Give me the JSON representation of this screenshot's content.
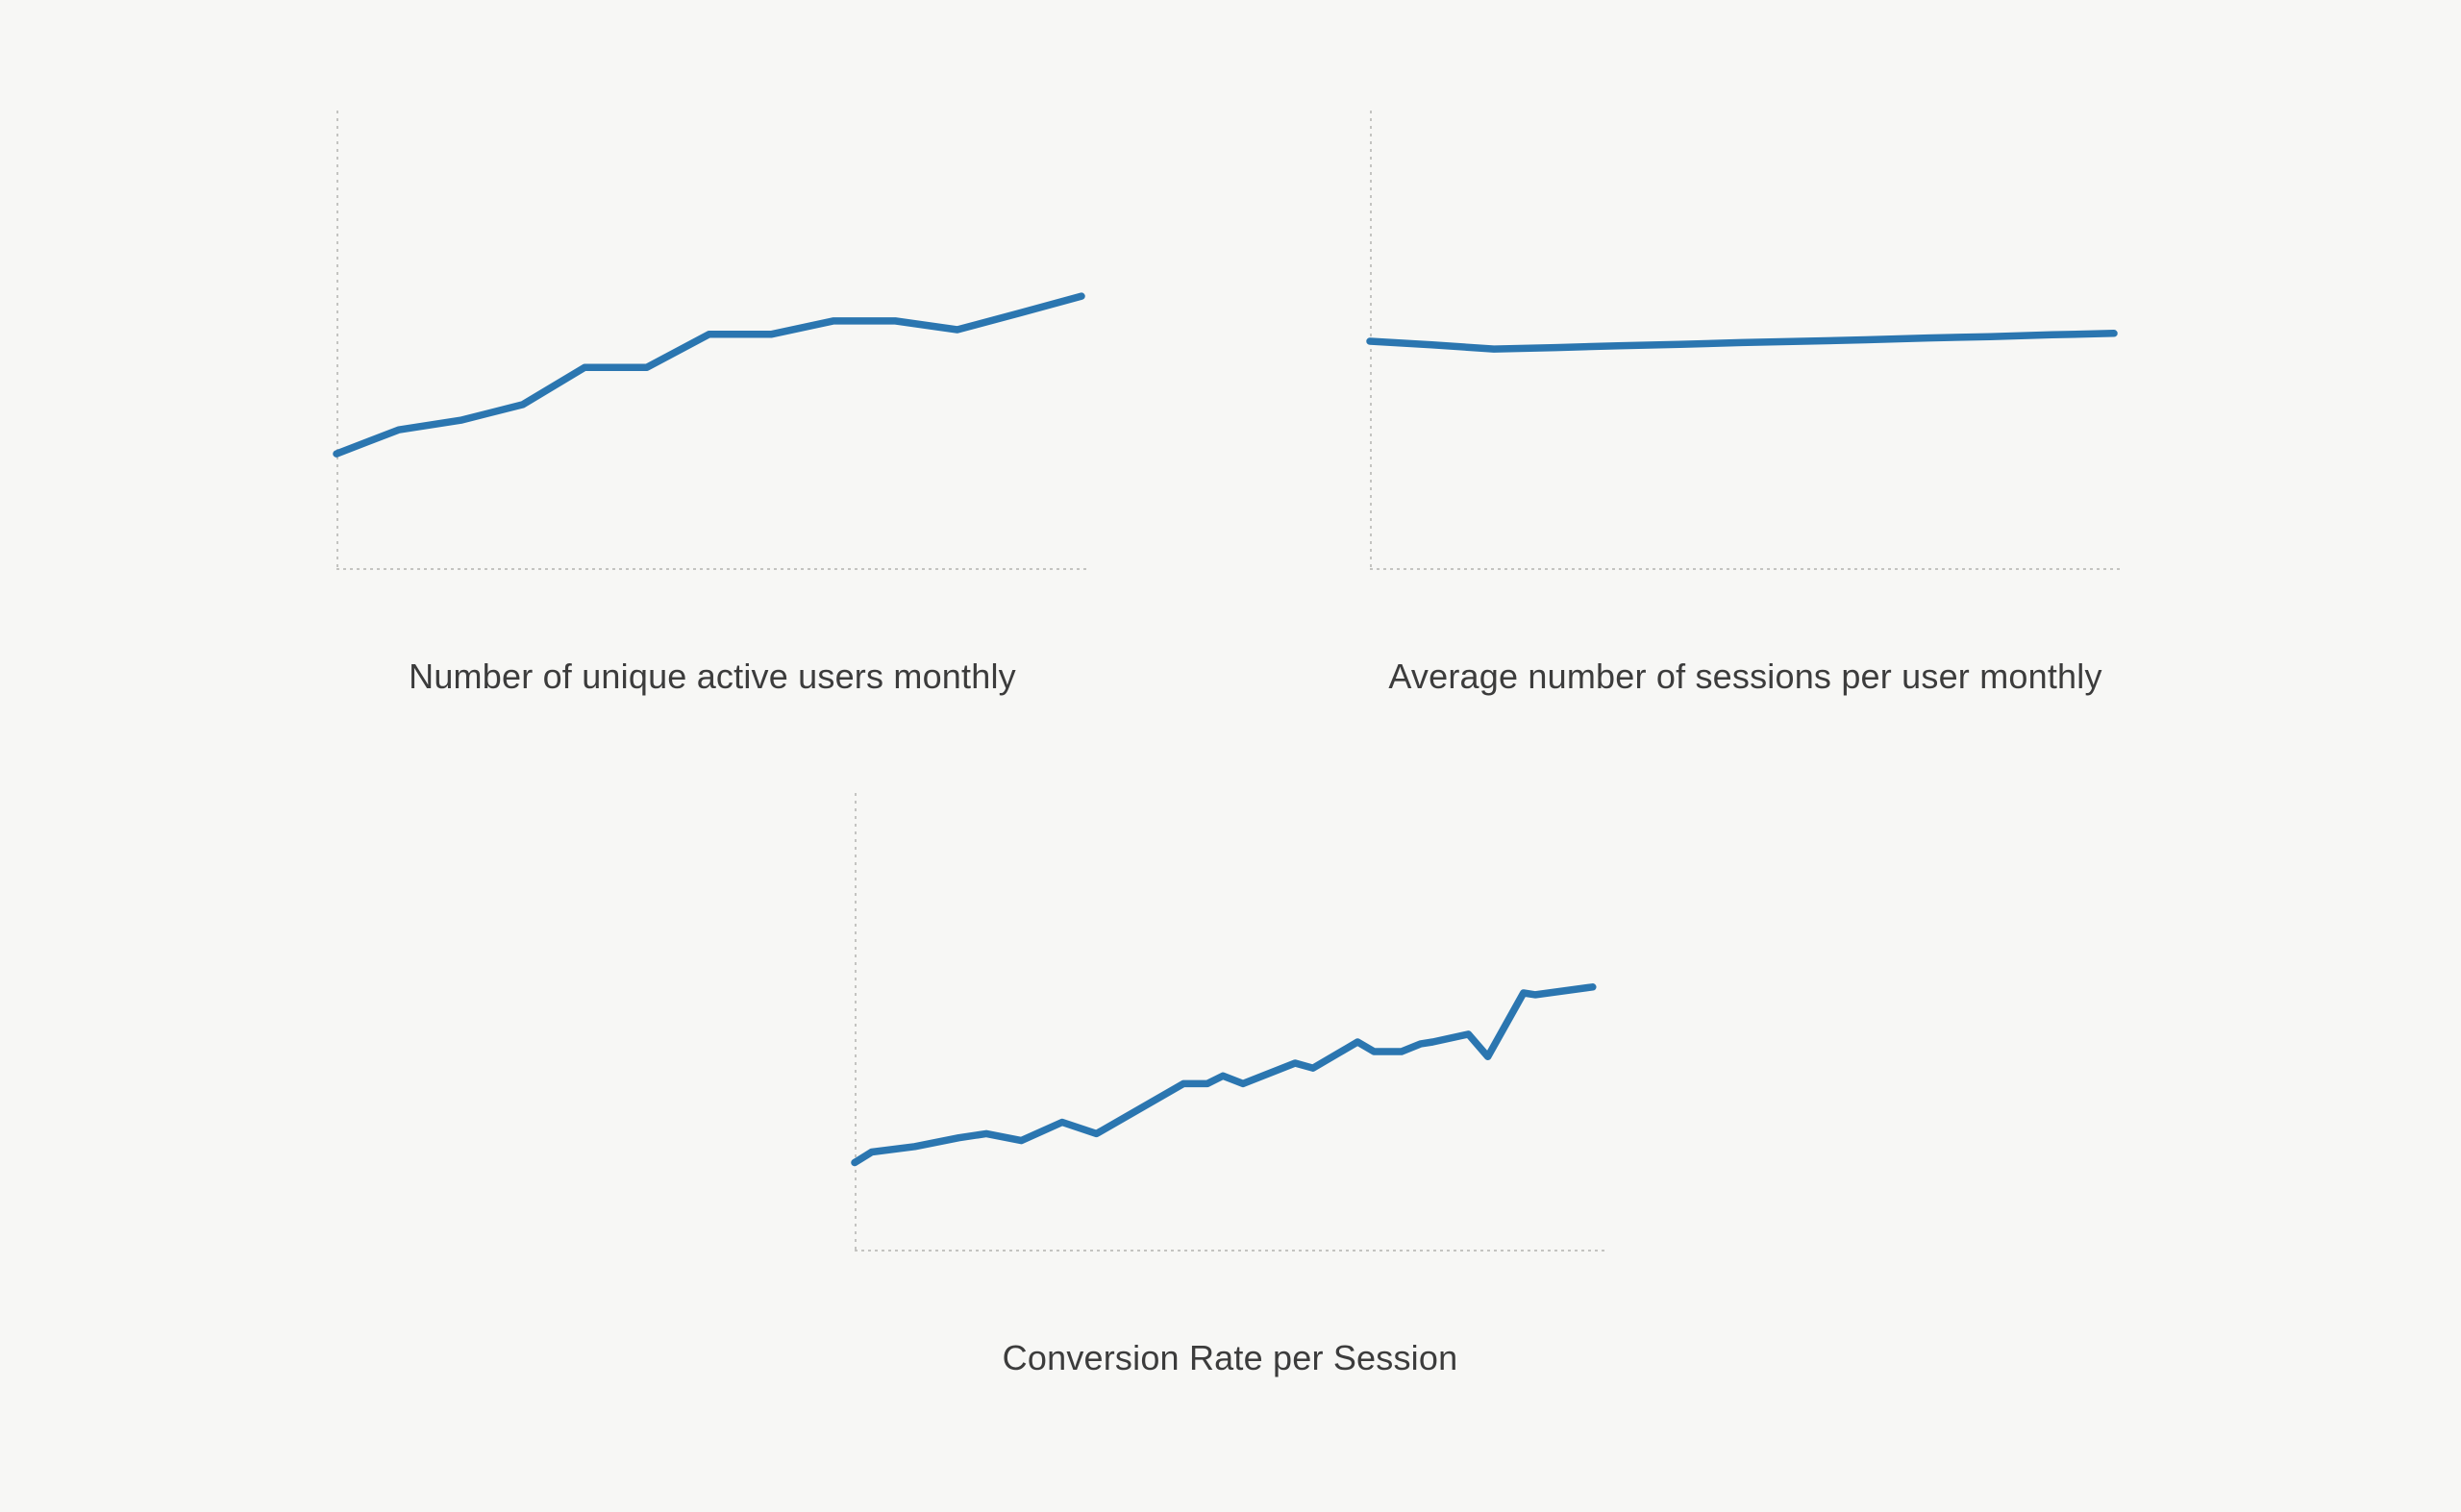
{
  "style": {
    "background_color": "#f7f7f5",
    "line_color": "#2b76b0",
    "axis_color": "#b3b3b0",
    "title_color": "#3c3c3c"
  },
  "chart_data": [
    {
      "type": "line",
      "title": "Number of unique active users monthly",
      "xlabel": "",
      "ylabel": "",
      "grid": false,
      "legend": null,
      "axis_style": "dashed axes, no ticks, no tick labels",
      "x_range_relative": [
        0,
        1
      ],
      "y_range_relative": [
        0,
        1
      ],
      "points_relative": [
        [
          0.0,
          0.253
        ],
        [
          0.0833,
          0.305
        ],
        [
          0.1667,
          0.326
        ],
        [
          0.25,
          0.36
        ],
        [
          0.3333,
          0.441
        ],
        [
          0.4167,
          0.441
        ],
        [
          0.5,
          0.513
        ],
        [
          0.5833,
          0.513
        ],
        [
          0.6667,
          0.542
        ],
        [
          0.75,
          0.542
        ],
        [
          0.8333,
          0.523
        ],
        [
          0.9167,
          0.559
        ],
        [
          1.0,
          0.596
        ]
      ]
    },
    {
      "type": "line",
      "title": "Average number of sessions per user monthly",
      "xlabel": "",
      "ylabel": "",
      "grid": false,
      "legend": null,
      "axis_style": "dashed axes, no ticks, no tick labels",
      "x_range_relative": [
        0,
        1
      ],
      "y_range_relative": [
        0,
        1
      ],
      "points_relative": [
        [
          0.0,
          0.498
        ],
        [
          0.0833,
          0.49
        ],
        [
          0.1667,
          0.481
        ],
        [
          0.25,
          0.484
        ],
        [
          0.3333,
          0.488
        ],
        [
          0.4167,
          0.491
        ],
        [
          0.5,
          0.495
        ],
        [
          0.5833,
          0.498
        ],
        [
          0.6667,
          0.501
        ],
        [
          0.75,
          0.505
        ],
        [
          0.8333,
          0.508
        ],
        [
          0.9167,
          0.512
        ],
        [
          1.0,
          0.515
        ]
      ]
    },
    {
      "type": "line",
      "title": "Conversion Rate per Session",
      "xlabel": "",
      "ylabel": "",
      "grid": false,
      "legend": null,
      "axis_style": "dashed axes, no ticks, no tick labels",
      "x_range_relative": [
        0,
        1
      ],
      "y_range_relative": [
        0,
        1
      ],
      "points_relative": [
        [
          0.0,
          0.194
        ],
        [
          0.023,
          0.217
        ],
        [
          0.081,
          0.229
        ],
        [
          0.14,
          0.248
        ],
        [
          0.177,
          0.257
        ],
        [
          0.224,
          0.242
        ],
        [
          0.279,
          0.282
        ],
        [
          0.325,
          0.257
        ],
        [
          0.442,
          0.366
        ],
        [
          0.474,
          0.366
        ],
        [
          0.495,
          0.383
        ],
        [
          0.522,
          0.366
        ],
        [
          0.592,
          0.411
        ],
        [
          0.616,
          0.4
        ],
        [
          0.676,
          0.457
        ],
        [
          0.698,
          0.436
        ],
        [
          0.735,
          0.436
        ],
        [
          0.761,
          0.453
        ],
        [
          0.777,
          0.457
        ],
        [
          0.825,
          0.474
        ],
        [
          0.851,
          0.425
        ],
        [
          0.899,
          0.564
        ],
        [
          0.915,
          0.56
        ],
        [
          0.992,
          0.577
        ]
      ]
    }
  ]
}
